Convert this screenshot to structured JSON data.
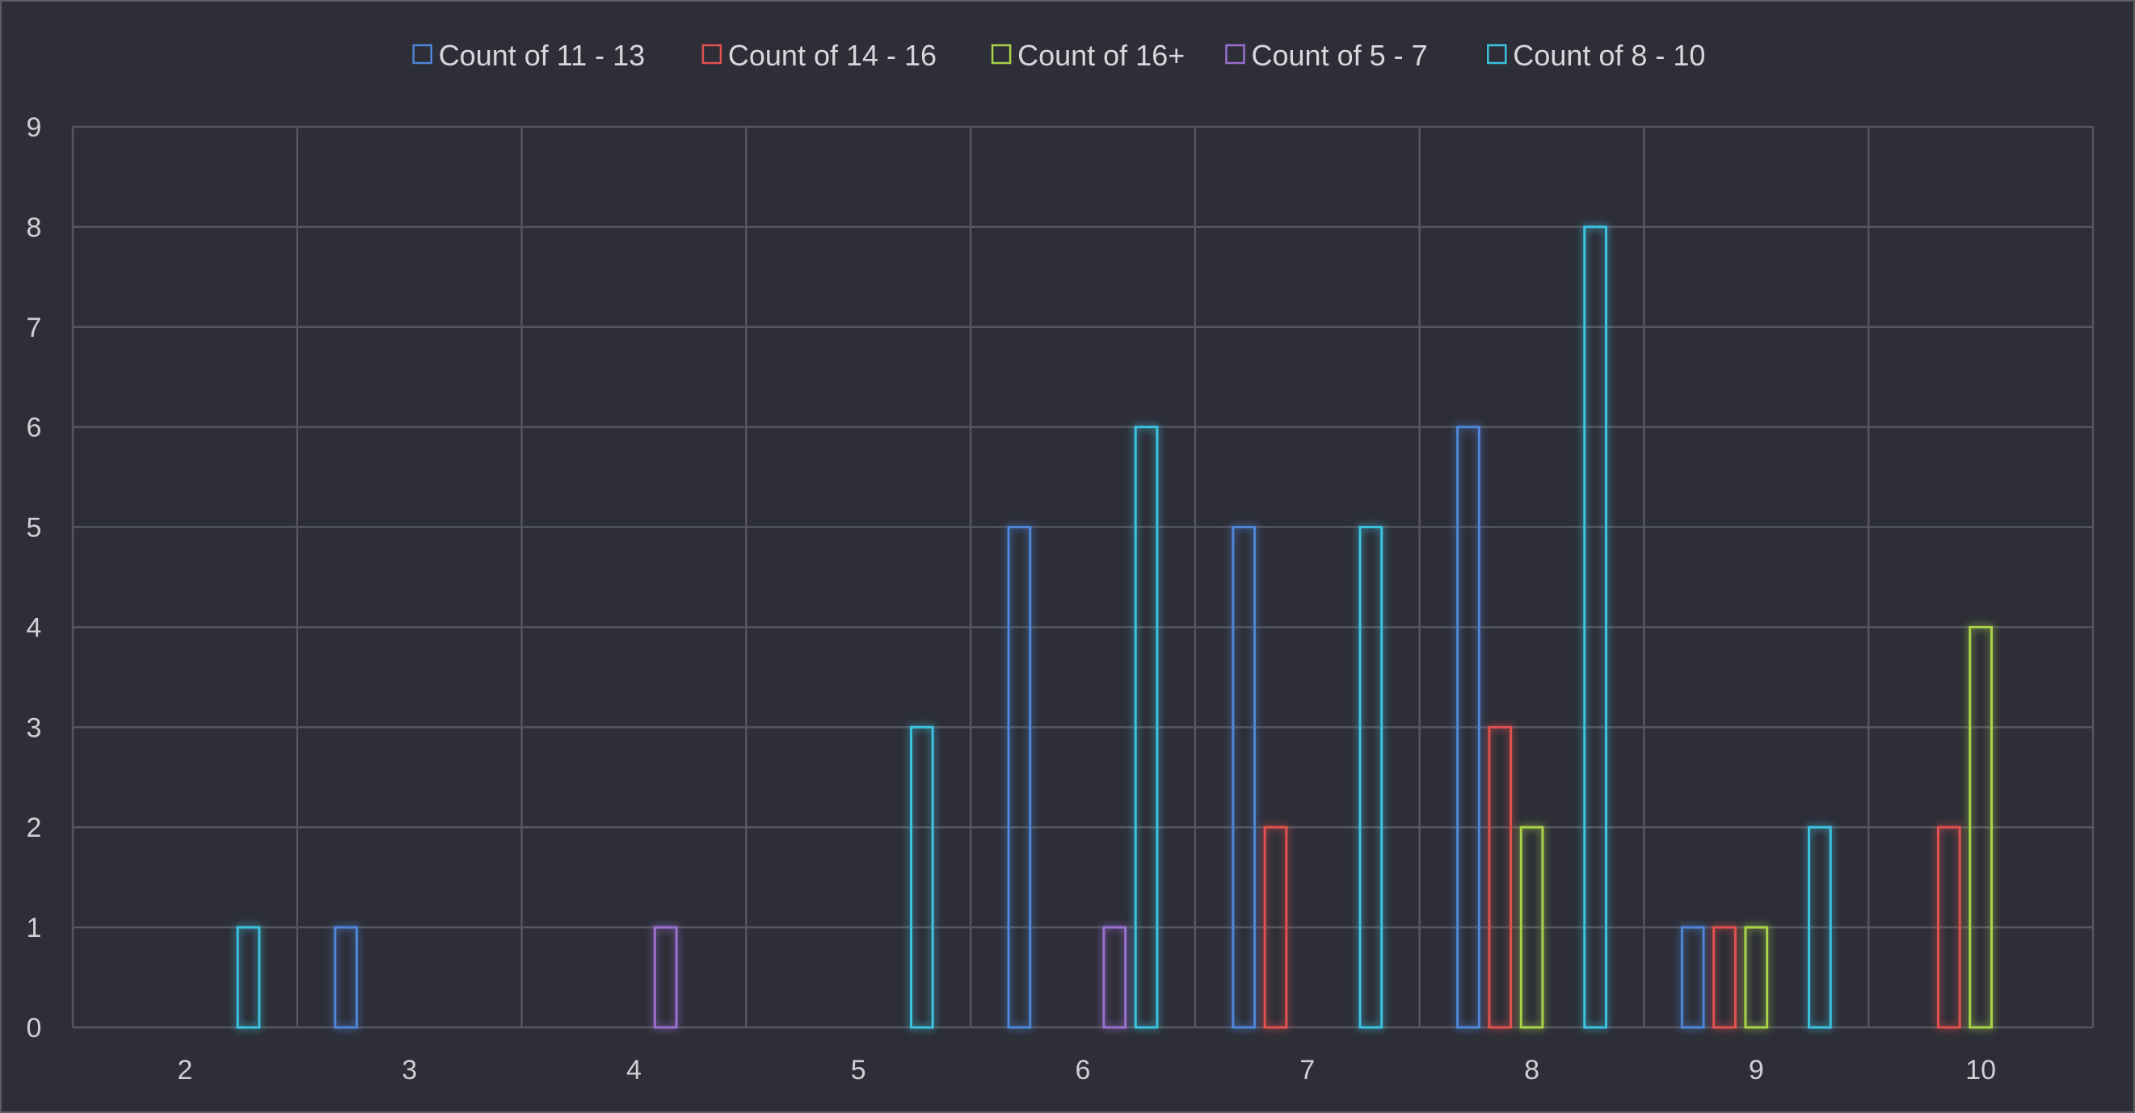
{
  "chart_data": {
    "type": "bar",
    "title": "",
    "xlabel": "",
    "ylabel": "",
    "ylim": [
      0,
      9
    ],
    "yticks": [
      "0",
      "1",
      "2",
      "3",
      "4",
      "5",
      "6",
      "7",
      "8",
      "9"
    ],
    "categories": [
      "2",
      "3",
      "4",
      "5",
      "6",
      "7",
      "8",
      "9",
      "10"
    ],
    "grid": true,
    "legend_position": "top",
    "series": [
      {
        "name": "Count of 11 - 13",
        "color": "#4f86d9",
        "values": [
          null,
          1,
          null,
          null,
          5,
          5,
          6,
          1,
          null
        ]
      },
      {
        "name": "Count of 14 - 16",
        "color": "#e0514f",
        "values": [
          null,
          null,
          null,
          null,
          null,
          2,
          3,
          1,
          2
        ]
      },
      {
        "name": "Count of 16+",
        "color": "#a9d34a",
        "values": [
          null,
          null,
          null,
          null,
          null,
          null,
          2,
          1,
          4
        ]
      },
      {
        "name": "Count of 5 - 7",
        "color": "#9a6fd0",
        "values": [
          null,
          null,
          1,
          null,
          1,
          null,
          null,
          null,
          null
        ]
      },
      {
        "name": "Count of 8 - 10",
        "color": "#3cc3e0",
        "values": [
          1,
          null,
          null,
          3,
          6,
          5,
          8,
          2,
          null
        ]
      }
    ]
  }
}
